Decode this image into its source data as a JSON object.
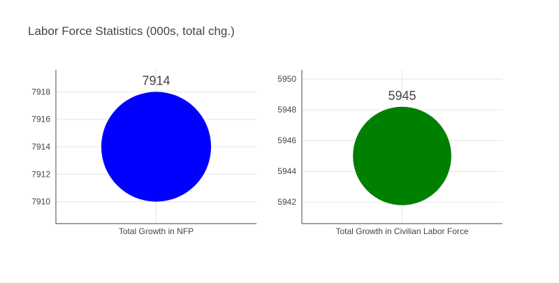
{
  "title": "Labor Force Statistics (000s, total chg.)",
  "colors": {
    "text": "#444444",
    "grid": "#e6e6e6",
    "background": "#ffffff"
  },
  "chart_data": [
    {
      "type": "scatter",
      "marker": "circle",
      "category": "Total Growth in NFP",
      "value": 7914,
      "value_label": "7914",
      "color": "#0000ff",
      "ylim": [
        7908.4,
        7919.6
      ],
      "yticks": [
        7910,
        7912,
        7914,
        7916,
        7918
      ],
      "marker_span": [
        7910,
        7918
      ],
      "grid": true
    },
    {
      "type": "scatter",
      "marker": "circle",
      "category": "Total Growth in Civilian Labor Force",
      "value": 5945,
      "value_label": "5945",
      "color": "#008000",
      "ylim": [
        5940.6,
        5950.6
      ],
      "yticks": [
        5942,
        5944,
        5946,
        5948,
        5950
      ],
      "marker_span": [
        5941.8,
        5948.2
      ],
      "grid": true
    }
  ]
}
